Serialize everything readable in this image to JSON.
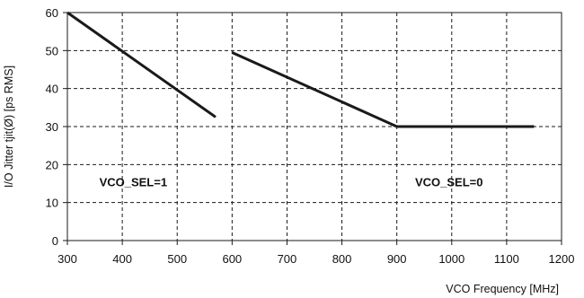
{
  "chart_data": {
    "type": "line",
    "xlabel": "VCO Frequency [MHz]",
    "ylabel": "I/O Jitter tjit(Ø) [ps RMS]",
    "xlim": [
      300,
      1200
    ],
    "ylim": [
      0,
      60
    ],
    "x_ticks": [
      300,
      400,
      500,
      600,
      700,
      800,
      900,
      1000,
      1100,
      1200
    ],
    "y_ticks": [
      0,
      10,
      20,
      30,
      40,
      50,
      60
    ],
    "grid": true,
    "grid_style": "dashed",
    "series": [
      {
        "x": [
          300,
          570
        ],
        "y": [
          60,
          32.5
        ]
      },
      {
        "x": [
          600,
          900,
          1150
        ],
        "y": [
          49.5,
          30,
          30
        ]
      }
    ],
    "annotations": [
      {
        "text": "VCO_SEL=1",
        "x": 420,
        "y": 15.5
      },
      {
        "text": "VCO_SEL=0",
        "x": 995,
        "y": 15.5
      }
    ],
    "colors": {
      "line": "#1a1a1a",
      "grid": "#1a1a1a",
      "plot_background": "#ffffff",
      "frame": "#1a1a1a"
    }
  }
}
